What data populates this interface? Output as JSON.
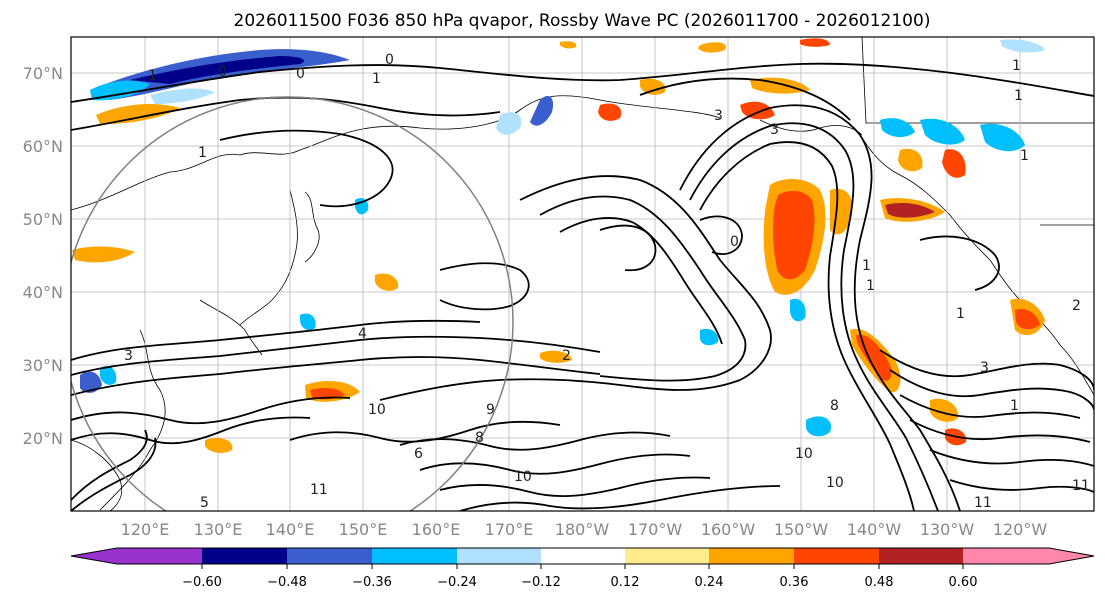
{
  "title": "2026011500 F036 850 hPa qvapor, Rossby Wave PC (2026011700 - 2026012100)",
  "map": {
    "lat_labels": [
      "70°N",
      "60°N",
      "50°N",
      "40°N",
      "30°N",
      "20°N"
    ],
    "lon_labels": [
      "120°E",
      "130°E",
      "140°E",
      "150°E",
      "160°E",
      "170°E",
      "180°W",
      "170°W",
      "160°W",
      "150°W",
      "140°W",
      "130°W",
      "120°W"
    ],
    "contour_labels": [
      "1",
      "0",
      "0",
      "1",
      "0",
      "3",
      "1",
      "1",
      "1",
      "4",
      "2",
      "3",
      "3",
      "10",
      "10",
      "9",
      "8",
      "6",
      "5",
      "10",
      "10",
      "11",
      "11",
      "1",
      "1",
      "1",
      "2",
      "8",
      "1",
      "11",
      "0",
      "3",
      "1"
    ]
  },
  "colorbar": {
    "colors": [
      "#9932cc",
      "#00008b",
      "#3a5fcd",
      "#00bfff",
      "#b0e2ff",
      "#ffffff",
      "#ffec8b",
      "#ffa500",
      "#ff4500",
      "#b22222",
      "#ff88aa"
    ],
    "tick_labels": [
      "−0.60",
      "−0.48",
      "−0.36",
      "−0.24",
      "−0.12",
      "0.12",
      "0.24",
      "0.36",
      "0.48",
      "0.60"
    ]
  }
}
